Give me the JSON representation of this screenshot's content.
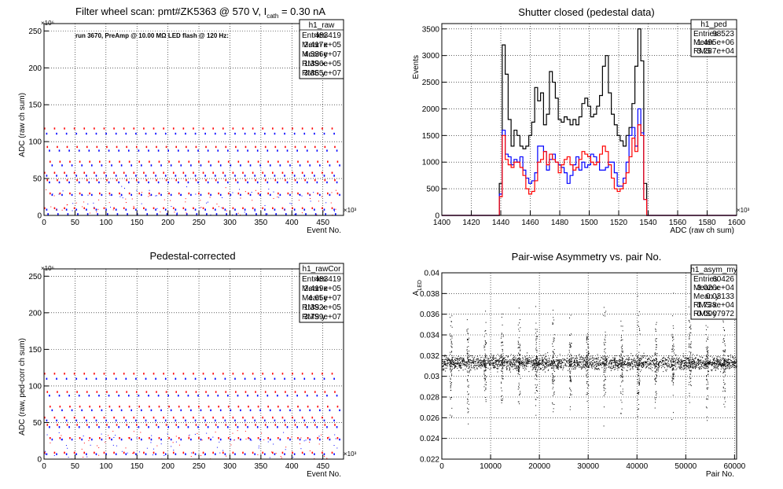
{
  "chart_data": [
    {
      "type": "scatter",
      "title": "Filter wheel scan: pmt#ZK5363 @   570 V, I",
      "title_sub": "cath",
      "title_tail": " = 0.30 nA",
      "annotation": "run 3670, PreAmp @ 10.00 MΩ LED flash @  120 Hz:",
      "xlabel": "Event No.",
      "ylabel": "ADC (raw ch sum)",
      "x_exponent": "×10³",
      "y_exponent": "×10⁶",
      "xlim": [
        0,
        483.4
      ],
      "ylim": [
        0,
        260
      ],
      "xticks": [
        "0",
        "50",
        "100",
        "150",
        "200",
        "250",
        "300",
        "350",
        "400",
        "450"
      ],
      "yticks": [
        "0",
        "50",
        "100",
        "150",
        "200",
        "250"
      ],
      "levels": [
        {
          "y": 118,
          "color": "#ff0000"
        },
        {
          "y": 111,
          "color": "#0000ff"
        },
        {
          "y": 93,
          "color": "#ff0000"
        },
        {
          "y": 88,
          "color": "#0000ff"
        },
        {
          "y": 73,
          "color": "#ff0000"
        },
        {
          "y": 68,
          "color": "#0000ff"
        },
        {
          "y": 58,
          "color": "#ff0000"
        },
        {
          "y": 54,
          "color": "#0000ff"
        },
        {
          "y": 48,
          "color": "#ff0000"
        },
        {
          "y": 45,
          "color": "#0000ff"
        },
        {
          "y": 30,
          "color": "#ff0000"
        },
        {
          "y": 28,
          "color": "#0000ff"
        },
        {
          "y": 10,
          "color": "#ff0000"
        },
        {
          "y": 8,
          "color": "#0000ff"
        },
        {
          "y": 2,
          "color": "#0000ff"
        }
      ],
      "period": 16,
      "stats": {
        "name": "h1_raw",
        "rows": [
          [
            "Entries",
            "483419"
          ],
          [
            "Mean x",
            "2.417e+05"
          ],
          [
            "Mean y",
            "4.336e+07"
          ],
          [
            "RMS x",
            "1.396e+05"
          ],
          [
            "RMS y",
            "3.865e+07"
          ]
        ]
      }
    },
    {
      "type": "histogram",
      "title": "Shutter closed (pedestal data)",
      "xlabel": "ADC (raw ch sum)",
      "ylabel": "Events",
      "x_exponent": "×10³",
      "xlim": [
        1400,
        1600
      ],
      "ylim": [
        0,
        3600
      ],
      "xticks": [
        "1400",
        "1420",
        "1440",
        "1460",
        "1480",
        "1500",
        "1520",
        "1540",
        "1560",
        "1580",
        "1600"
      ],
      "yticks": [
        "0",
        "500",
        "1000",
        "1500",
        "2000",
        "2500",
        "3000",
        "3500"
      ],
      "bin_start": 1439,
      "bin_width": 2,
      "series": [
        {
          "color": "#000000",
          "values": [
            600,
            3200,
            2650,
            1800,
            1300,
            1600,
            1500,
            1300,
            1250,
            1300,
            1500,
            1750,
            2400,
            2150,
            2300,
            1700,
            1900,
            2700,
            2500,
            2200,
            1800,
            1750,
            1850,
            1800,
            1700,
            1800,
            1700,
            1850,
            2100,
            2200,
            2050,
            1850,
            1900,
            2050,
            2250,
            2800,
            3000,
            2300,
            1900,
            1700,
            1500,
            1400,
            1300,
            1500,
            1650,
            2100,
            2800,
            3500,
            2900,
            600
          ]
        },
        {
          "color": "#0000ff",
          "values": [
            400,
            1600,
            1150,
            1100,
            950,
            1050,
            1000,
            1100,
            850,
            700,
            600,
            650,
            800,
            1300,
            1300,
            1200,
            850,
            1050,
            1150,
            1000,
            950,
            900,
            800,
            600,
            750,
            950,
            1100,
            850,
            1000,
            900,
            950,
            1150,
            1100,
            1000,
            850,
            850,
            900,
            1000,
            1000,
            800,
            550,
            550,
            700,
            1000,
            1500,
            1650,
            1300,
            2000,
            1550,
            300
          ]
        },
        {
          "color": "#ff0000",
          "values": [
            350,
            1500,
            1050,
            950,
            900,
            1000,
            1000,
            900,
            750,
            500,
            400,
            450,
            650,
            1000,
            1050,
            1200,
            950,
            1150,
            1050,
            1000,
            800,
            950,
            1050,
            1100,
            950,
            850,
            900,
            1050,
            1200,
            1150,
            1100,
            1000,
            950,
            1000,
            1150,
            1300,
            1200,
            950,
            700,
            500,
            450,
            500,
            600,
            800,
            1100,
            1450,
            1200,
            1700,
            1500,
            300
          ]
        }
      ],
      "stats": {
        "name": "h1_ped",
        "rows": [
          [
            "Entries",
            "98523"
          ],
          [
            "Mean",
            "1.495e+06"
          ],
          [
            "RMS",
            "3.287e+04"
          ]
        ]
      }
    },
    {
      "type": "scatter",
      "title": "Pedestal-corrected",
      "xlabel": "Event No.",
      "ylabel": "ADC (raw, ped-corr ch sum)",
      "x_exponent": "×10³",
      "y_exponent": "×10⁶",
      "xlim": [
        0,
        483.4
      ],
      "ylim": [
        0,
        260
      ],
      "xticks": [
        "0",
        "50",
        "100",
        "150",
        "200",
        "250",
        "300",
        "350",
        "400",
        "450"
      ],
      "yticks": [
        "0",
        "50",
        "100",
        "150",
        "200",
        "250"
      ],
      "levels": [
        {
          "y": 117,
          "color": "#ff0000"
        },
        {
          "y": 110,
          "color": "#0000ff"
        },
        {
          "y": 92,
          "color": "#ff0000"
        },
        {
          "y": 87,
          "color": "#0000ff"
        },
        {
          "y": 72,
          "color": "#ff0000"
        },
        {
          "y": 67,
          "color": "#0000ff"
        },
        {
          "y": 57,
          "color": "#ff0000"
        },
        {
          "y": 53,
          "color": "#0000ff"
        },
        {
          "y": 47,
          "color": "#ff0000"
        },
        {
          "y": 44,
          "color": "#0000ff"
        },
        {
          "y": 29,
          "color": "#ff0000"
        },
        {
          "y": 27,
          "color": "#0000ff"
        },
        {
          "y": 9,
          "color": "#ff0000"
        },
        {
          "y": 7,
          "color": "#0000ff"
        }
      ],
      "period": 16,
      "stats": {
        "name": "h1_rawCor",
        "rows": [
          [
            "Entries",
            "483419"
          ],
          [
            "Mean x",
            "2.419e+05"
          ],
          [
            "Mean y",
            "4.65e+07"
          ],
          [
            "RMS x",
            "1.392e+05"
          ],
          [
            "RMS y",
            "3.799e+07"
          ]
        ]
      }
    },
    {
      "type": "scatter",
      "title": "Pair-wise Asymmetry vs. pair No.",
      "xlabel": "Pair No.",
      "ylabel": "A",
      "ylabel_sub": "LED",
      "xlim": [
        0,
        60426
      ],
      "ylim": [
        0.022,
        0.04
      ],
      "xticks": [
        "0",
        "10000",
        "20000",
        "30000",
        "40000",
        "50000",
        "60000"
      ],
      "yticks": [
        "0.022",
        "0.024",
        "0.026",
        "0.028",
        "0.03",
        "0.032",
        "0.034",
        "0.036",
        "0.038",
        "0.04"
      ],
      "band_center": 0.03133,
      "band_width": 0.0006,
      "spike_period": 3500,
      "stats": {
        "name": "h1_asym_my",
        "rows": [
          [
            "Entries",
            "60426"
          ],
          [
            "Mean x",
            "3.026e+04"
          ],
          [
            "Mean y",
            "0.03133"
          ],
          [
            "RMS x",
            "1.738e+04"
          ],
          [
            "RMS y",
            "0.0007972"
          ]
        ]
      }
    }
  ]
}
